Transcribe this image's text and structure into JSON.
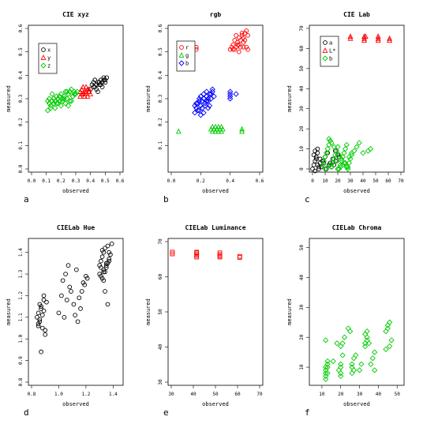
{
  "chart_data": [
    {
      "letter": "a",
      "title": "CIE xyz",
      "type": "scatter",
      "xlabel": "observed",
      "ylabel": "measured",
      "xlim": [
        0,
        0.6
      ],
      "ylim": [
        0,
        0.6
      ],
      "xticks": [
        "0.0",
        "0.1",
        "0.2",
        "0.3",
        "0.4",
        "0.5",
        "0.6"
      ],
      "yticks": [
        "0.0",
        "0.1",
        "0.2",
        "0.3",
        "0.4",
        "0.5",
        "0.6"
      ],
      "legend_position": "top-left",
      "series": [
        {
          "name": "x",
          "color": "#000000",
          "marker": "circle",
          "x": [
            0.4,
            0.42,
            0.44,
            0.46,
            0.48,
            0.5,
            0.41,
            0.43,
            0.45,
            0.47,
            0.49,
            0.51,
            0.39,
            0.42,
            0.44,
            0.46,
            0.48,
            0.5,
            0.43,
            0.45,
            0.47,
            0.49
          ],
          "y": [
            0.34,
            0.35,
            0.36,
            0.37,
            0.37,
            0.38,
            0.36,
            0.35,
            0.37,
            0.38,
            0.39,
            0.39,
            0.33,
            0.37,
            0.34,
            0.36,
            0.35,
            0.37,
            0.38,
            0.33,
            0.36,
            0.38
          ]
        },
        {
          "name": "y",
          "color": "#ff0000",
          "marker": "triangle",
          "x": [
            0.33,
            0.34,
            0.35,
            0.36,
            0.37,
            0.38,
            0.39,
            0.4,
            0.34,
            0.36,
            0.38,
            0.35,
            0.37,
            0.39,
            0.33,
            0.36
          ],
          "y": [
            0.31,
            0.32,
            0.32,
            0.33,
            0.33,
            0.34,
            0.33,
            0.32,
            0.34,
            0.31,
            0.31,
            0.35,
            0.35,
            0.34,
            0.33,
            0.32
          ]
        },
        {
          "name": "z",
          "color": "#00cc00",
          "marker": "diamond",
          "x": [
            0.11,
            0.12,
            0.13,
            0.14,
            0.15,
            0.16,
            0.17,
            0.18,
            0.19,
            0.2,
            0.21,
            0.22,
            0.23,
            0.24,
            0.25,
            0.26,
            0.27,
            0.28,
            0.29,
            0.3,
            0.12,
            0.14,
            0.16,
            0.18,
            0.2,
            0.22,
            0.24,
            0.26,
            0.28,
            0.13,
            0.15,
            0.17,
            0.19,
            0.21,
            0.23,
            0.25,
            0.27,
            0.29,
            0.31,
            0.11
          ],
          "y": [
            0.25,
            0.28,
            0.27,
            0.29,
            0.3,
            0.26,
            0.28,
            0.3,
            0.31,
            0.32,
            0.29,
            0.31,
            0.33,
            0.3,
            0.32,
            0.33,
            0.34,
            0.31,
            0.33,
            0.32,
            0.3,
            0.32,
            0.29,
            0.28,
            0.27,
            0.3,
            0.33,
            0.29,
            0.31,
            0.26,
            0.28,
            0.31,
            0.29,
            0.3,
            0.28,
            0.27,
            0.29,
            0.32,
            0.33,
            0.29
          ]
        }
      ]
    },
    {
      "letter": "b",
      "title": "rgb",
      "type": "scatter",
      "xlabel": "observed",
      "ylabel": "measured",
      "xlim": [
        0,
        0.6
      ],
      "ylim": [
        0,
        0.6
      ],
      "xticks": [
        "0.0",
        "0.2",
        "0.4",
        "0.6"
      ],
      "yticks": [
        "0.1",
        "0.2",
        "0.3",
        "0.4",
        "0.5",
        "0.6"
      ],
      "legend_position": "top-left",
      "series": [
        {
          "name": "r",
          "color": "#ff0000",
          "marker": "circle",
          "x": [
            0.17,
            0.17,
            0.4,
            0.42,
            0.43,
            0.44,
            0.45,
            0.46,
            0.47,
            0.48,
            0.49,
            0.5,
            0.51,
            0.52,
            0.41,
            0.43,
            0.45,
            0.47,
            0.49,
            0.51,
            0.44,
            0.46,
            0.48,
            0.5,
            0.42,
            0.46,
            0.49,
            0.52
          ],
          "y": [
            0.52,
            0.51,
            0.51,
            0.53,
            0.55,
            0.52,
            0.54,
            0.56,
            0.55,
            0.57,
            0.56,
            0.58,
            0.59,
            0.57,
            0.52,
            0.51,
            0.53,
            0.52,
            0.54,
            0.52,
            0.57,
            0.53,
            0.58,
            0.55,
            0.51,
            0.5,
            0.52,
            0.51
          ]
        },
        {
          "name": "g",
          "color": "#00cc00",
          "marker": "triangle",
          "x": [
            0.05,
            0.27,
            0.28,
            0.29,
            0.3,
            0.31,
            0.32,
            0.33,
            0.34,
            0.35,
            0.28,
            0.3,
            0.32,
            0.34,
            0.29,
            0.31,
            0.33,
            0.48,
            0.48
          ],
          "y": [
            0.16,
            0.17,
            0.16,
            0.17,
            0.16,
            0.17,
            0.16,
            0.17,
            0.16,
            0.17,
            0.18,
            0.18,
            0.18,
            0.18,
            0.17,
            0.17,
            0.17,
            0.17,
            0.16
          ]
        },
        {
          "name": "b",
          "color": "#0000ff",
          "marker": "diamond",
          "x": [
            0.16,
            0.17,
            0.18,
            0.19,
            0.2,
            0.21,
            0.22,
            0.23,
            0.24,
            0.25,
            0.26,
            0.27,
            0.28,
            0.29,
            0.17,
            0.19,
            0.21,
            0.23,
            0.25,
            0.27,
            0.18,
            0.2,
            0.22,
            0.24,
            0.26,
            0.28,
            0.16,
            0.2,
            0.24,
            0.22,
            0.19,
            0.25,
            0.4,
            0.4,
            0.4,
            0.4,
            0.44
          ],
          "y": [
            0.24,
            0.26,
            0.28,
            0.25,
            0.27,
            0.29,
            0.3,
            0.28,
            0.31,
            0.29,
            0.32,
            0.3,
            0.33,
            0.31,
            0.28,
            0.3,
            0.26,
            0.27,
            0.3,
            0.32,
            0.25,
            0.31,
            0.24,
            0.29,
            0.27,
            0.34,
            0.27,
            0.23,
            0.33,
            0.32,
            0.29,
            0.26,
            0.3,
            0.31,
            0.32,
            0.33,
            0.32
          ]
        }
      ]
    },
    {
      "letter": "c",
      "title": "CIE Lab",
      "type": "scatter",
      "xlabel": "observed",
      "ylabel": "measured",
      "xlim": [
        0,
        70
      ],
      "ylim": [
        0,
        70
      ],
      "xticks": [
        "0",
        "10",
        "20",
        "30",
        "40",
        "50",
        "60",
        "70"
      ],
      "yticks": [
        "0",
        "10",
        "20",
        "30",
        "40",
        "50",
        "60",
        "70"
      ],
      "legend_position": "top-left",
      "series": [
        {
          "name": "a",
          "color": "#000000",
          "marker": "circle",
          "x": [
            0,
            1,
            2,
            3,
            4,
            5,
            6,
            1,
            2,
            3,
            4,
            5,
            7,
            8,
            10,
            12,
            14,
            16,
            18,
            20,
            15,
            13,
            11,
            9,
            2,
            4,
            6,
            17,
            19,
            21
          ],
          "y": [
            0,
            2,
            4,
            6,
            8,
            1,
            3,
            7,
            9,
            5,
            2,
            0,
            1,
            4,
            6,
            8,
            3,
            5,
            9,
            7,
            1,
            2,
            0,
            3,
            -1,
            10,
            5,
            2,
            4,
            6
          ]
        },
        {
          "name": "L*",
          "color": "#ff0000",
          "marker": "triangle",
          "x": [
            30,
            30,
            41,
            41,
            41,
            42,
            52,
            52,
            52,
            61,
            61
          ],
          "y": [
            66,
            65,
            66,
            65,
            64,
            66,
            66,
            65,
            64,
            65,
            64
          ]
        },
        {
          "name": "b",
          "color": "#00cc00",
          "marker": "diamond",
          "x": [
            8,
            9,
            10,
            11,
            12,
            13,
            14,
            15,
            16,
            17,
            18,
            19,
            20,
            21,
            22,
            23,
            24,
            25,
            26,
            27,
            28,
            29,
            30,
            31,
            33,
            35,
            37,
            40,
            44,
            46,
            10,
            12,
            14,
            16,
            18,
            20,
            22,
            24,
            26,
            28,
            13,
            15,
            17,
            19,
            21,
            23,
            25,
            27,
            29,
            31
          ],
          "y": [
            2,
            4,
            6,
            8,
            10,
            12,
            14,
            1,
            3,
            5,
            7,
            9,
            11,
            0,
            2,
            4,
            6,
            8,
            10,
            12,
            1,
            3,
            5,
            7,
            9,
            11,
            13,
            8,
            9,
            10,
            0,
            1,
            2,
            3,
            4,
            0,
            1,
            2,
            3,
            0,
            15,
            13,
            11,
            9,
            7,
            5,
            3,
            1,
            6,
            8
          ]
        }
      ]
    },
    {
      "letter": "d",
      "title": "CIELab Hue",
      "type": "scatter",
      "xlabel": "observed",
      "ylabel": "measured",
      "xlim": [
        0.8,
        1.45
      ],
      "ylim": [
        0.8,
        1.45
      ],
      "xticks": [
        "0.8",
        "1.0",
        "1.2",
        "1.4"
      ],
      "yticks": [
        "0.8",
        "0.9",
        "1.0",
        "1.1",
        "1.2",
        "1.3",
        "1.4"
      ],
      "series": [
        {
          "name": "",
          "color": "#000000",
          "marker": "circle",
          "x": [
            0.84,
            0.85,
            0.86,
            0.87,
            0.88,
            0.89,
            0.9,
            0.85,
            0.87,
            0.89,
            0.86,
            0.88,
            0.9,
            0.87,
            0.86,
            0.85,
            0.89,
            0.91,
            1.0,
            1.02,
            1.04,
            1.06,
            1.08,
            1.03,
            1.05,
            1.07,
            1.09,
            1.11,
            1.12,
            1.14,
            1.16,
            1.18,
            1.2,
            1.13,
            1.15,
            1.17,
            1.19,
            1.21,
            1.3,
            1.31,
            1.32,
            1.33,
            1.34,
            1.35,
            1.36,
            1.37,
            1.38,
            1.31,
            1.33,
            1.35,
            1.37,
            1.32,
            1.34,
            1.36,
            1.3,
            1.33,
            1.35,
            1.37,
            1.39,
            1.31,
            1.34,
            1.36,
            1.33,
            1.32
          ],
          "y": [
            1.1,
            1.12,
            1.08,
            1.15,
            1.05,
            1.18,
            1.02,
            1.06,
            1.14,
            1.2,
            1.16,
            1.11,
            1.04,
            0.94,
            1.09,
            1.07,
            1.13,
            1.17,
            1.12,
            1.2,
            1.1,
            1.18,
            1.24,
            1.27,
            1.3,
            1.34,
            1.22,
            1.16,
            1.11,
            1.08,
            1.14,
            1.26,
            1.29,
            1.32,
            1.19,
            1.22,
            1.25,
            1.28,
            1.34,
            1.36,
            1.38,
            1.4,
            1.31,
            1.33,
            1.35,
            1.37,
            1.39,
            1.29,
            1.32,
            1.34,
            1.36,
            1.41,
            1.42,
            1.43,
            1.3,
            1.27,
            1.35,
            1.4,
            1.44,
            1.33,
            1.22,
            1.16,
            1.31,
            1.28
          ]
        }
      ]
    },
    {
      "letter": "e",
      "title": "CIELab Luminance",
      "type": "scatter",
      "xlabel": "observed",
      "ylabel": "measured",
      "xlim": [
        30,
        70
      ],
      "ylim": [
        30,
        70
      ],
      "xticks": [
        "30",
        "40",
        "50",
        "60",
        "70"
      ],
      "yticks": [
        "30",
        "40",
        "50",
        "60",
        "70"
      ],
      "series": [
        {
          "name": "",
          "color": "#ff0000",
          "marker": "square",
          "x": [
            30.5,
            30.5,
            41.5,
            41.5,
            41.5,
            41.5,
            41.5,
            52,
            52,
            52,
            52,
            61,
            61
          ],
          "y": [
            67,
            66.5,
            67,
            66.8,
            66.4,
            66,
            65.6,
            66.8,
            66.3,
            65.9,
            65.6,
            65.8,
            65.5
          ]
        }
      ]
    },
    {
      "letter": "f",
      "title": "CIELab Chroma",
      "type": "scatter",
      "xlabel": "observed",
      "ylabel": "measured",
      "xlim": [
        5,
        52
      ],
      "ylim": [
        5,
        52
      ],
      "xticks": [
        "10",
        "20",
        "30",
        "40",
        "50"
      ],
      "yticks": [
        "10",
        "20",
        "30",
        "40",
        "50"
      ],
      "series": [
        {
          "name": "",
          "color": "#00cc00",
          "marker": "diamond",
          "x": [
            12,
            12,
            12,
            12,
            12,
            13,
            13,
            13,
            12,
            13,
            16,
            18,
            19,
            20,
            20,
            20,
            20,
            21,
            20,
            21,
            22,
            24,
            25,
            26,
            26,
            27,
            26,
            27,
            28,
            30,
            31,
            33,
            33,
            34,
            34,
            33,
            34,
            35,
            36,
            37,
            38,
            38,
            44,
            44,
            45,
            45,
            46,
            46,
            47
          ],
          "y": [
            6,
            7,
            8,
            9,
            10,
            11,
            12,
            8,
            19,
            10,
            12,
            18,
            9,
            7,
            8,
            10,
            11,
            14,
            17,
            18,
            20,
            23,
            22,
            10,
            8,
            9,
            11,
            13,
            14,
            9,
            11,
            17,
            18,
            19,
            20,
            21,
            22,
            18,
            11,
            13,
            9,
            15,
            16,
            22,
            23,
            24,
            25,
            17,
            19
          ]
        }
      ]
    }
  ]
}
